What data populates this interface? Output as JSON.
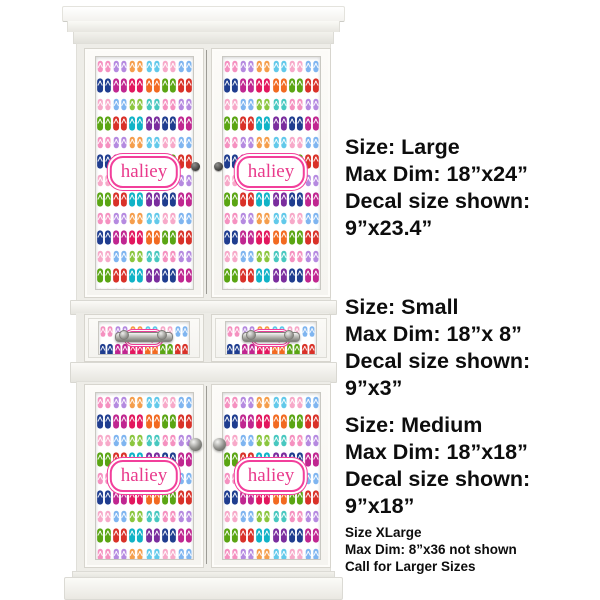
{
  "decal": {
    "name": "haliey",
    "theme": "flip-flops-pattern",
    "label_text_color": "#e93a8c",
    "label_border_color": "#f23f9b",
    "pattern": {
      "palette_light": [
        "#f591c0",
        "#62c9ea",
        "#8bc63f",
        "#b58ae0",
        "#f7a9c9",
        "#48c8c0",
        "#f59e4c",
        "#7fb5f0"
      ],
      "palette_bold": [
        "#e3175e",
        "#d93128",
        "#1f3d8f",
        "#f26a21",
        "#10b3c7",
        "#c02690",
        "#5aa513",
        "#7a2d9e"
      ]
    }
  },
  "cabinet": {
    "finish_color": "#f5f4f0"
  },
  "size_blocks": [
    {
      "id": "large",
      "lines": [
        "Size: Large",
        "Max Dim: 18”x24”",
        "Decal size shown:",
        "9”x23.4”"
      ]
    },
    {
      "id": "small",
      "lines": [
        "Size: Small",
        "Max Dim: 18”x 8”",
        "Decal size shown:",
        "9”x3”"
      ]
    },
    {
      "id": "medium",
      "lines": [
        "Size: Medium",
        "Max Dim: 18”x18”",
        "Decal size shown:",
        "9”x18”"
      ]
    }
  ],
  "footnote": {
    "lines": [
      "Size XLarge",
      "Max Dim: 8”x36 not shown",
      "Call for Larger Sizes"
    ]
  }
}
